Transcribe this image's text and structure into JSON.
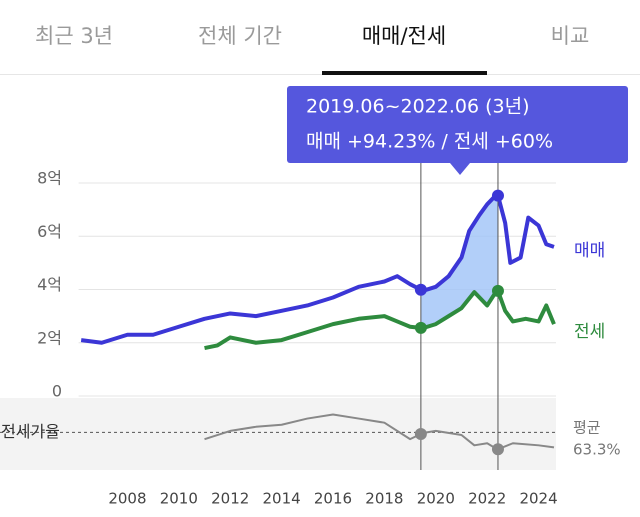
{
  "tabs": [
    "최근 3년",
    "전체 기간",
    "매매/전세",
    "비교"
  ],
  "chart_data": {
    "type": "line",
    "tooltip": {
      "line1": "2019.06~2022.06 (3년)",
      "line2": "매매 +94.23%  /  전세 +60%"
    },
    "highlight_x": [
      2019.42,
      2022.42
    ],
    "xlim": [
      2006.1,
      2024.9
    ],
    "xticks": [
      2008,
      2010,
      2012,
      2014,
      2016,
      2018,
      2020,
      2022,
      2024
    ],
    "ylim": [
      0,
      8
    ],
    "yticks": [
      0,
      {
        "value": 2,
        "label": "2억"
      },
      {
        "value": 4,
        "label": "4억"
      },
      {
        "value": 6,
        "label": "6억"
      },
      {
        "value": 8,
        "label": "8억"
      }
    ],
    "grid": true,
    "series": [
      {
        "name": "매매",
        "color": "#3b36d6",
        "x": [
          2006.2,
          2007,
          2008,
          2009,
          2010,
          2011,
          2012,
          2013,
          2014,
          2015,
          2016,
          2017,
          2018,
          2018.5,
          2019,
          2019.5,
          2020,
          2020.5,
          2021,
          2021.3,
          2021.7,
          2022,
          2022.4,
          2022.7,
          2022.9,
          2023.3,
          2023.6,
          2024,
          2024.3,
          2024.6
        ],
        "values": [
          2.1,
          2.0,
          2.3,
          2.3,
          2.6,
          2.9,
          3.1,
          3.0,
          3.2,
          3.4,
          3.7,
          4.1,
          4.3,
          4.5,
          4.2,
          3.95,
          4.1,
          4.5,
          5.2,
          6.2,
          6.8,
          7.2,
          7.6,
          6.5,
          5.0,
          5.2,
          6.7,
          6.4,
          5.7,
          5.6
        ]
      },
      {
        "name": "전세",
        "color": "#2e8b3e",
        "x": [
          2011,
          2011.5,
          2012,
          2013,
          2014,
          2015,
          2016,
          2017,
          2018,
          2018.5,
          2019,
          2019.5,
          2020,
          2020.5,
          2021,
          2021.5,
          2022,
          2022.4,
          2022.7,
          2023,
          2023.5,
          2024,
          2024.3,
          2024.6
        ],
        "values": [
          1.8,
          1.9,
          2.2,
          2.0,
          2.1,
          2.4,
          2.7,
          2.9,
          3.0,
          2.8,
          2.6,
          2.55,
          2.7,
          3.0,
          3.3,
          3.9,
          3.4,
          4.0,
          3.2,
          2.8,
          2.9,
          2.8,
          3.4,
          2.7
        ]
      }
    ],
    "ratio": {
      "name": "전세가율",
      "color": "#888888",
      "ylim": [
        45,
        80
      ],
      "average_title": "평균",
      "average": 63.3,
      "average_label": "63.3%",
      "x": [
        2011,
        2012,
        2013,
        2014,
        2015,
        2016,
        2017,
        2018,
        2019,
        2019.5,
        2020,
        2021,
        2021.5,
        2022,
        2022.4,
        2023,
        2024,
        2024.6
      ],
      "values": [
        60,
        64,
        66,
        67,
        70,
        72,
        70,
        68,
        60,
        63,
        64,
        62,
        57,
        58,
        55,
        58,
        57,
        56
      ]
    }
  }
}
